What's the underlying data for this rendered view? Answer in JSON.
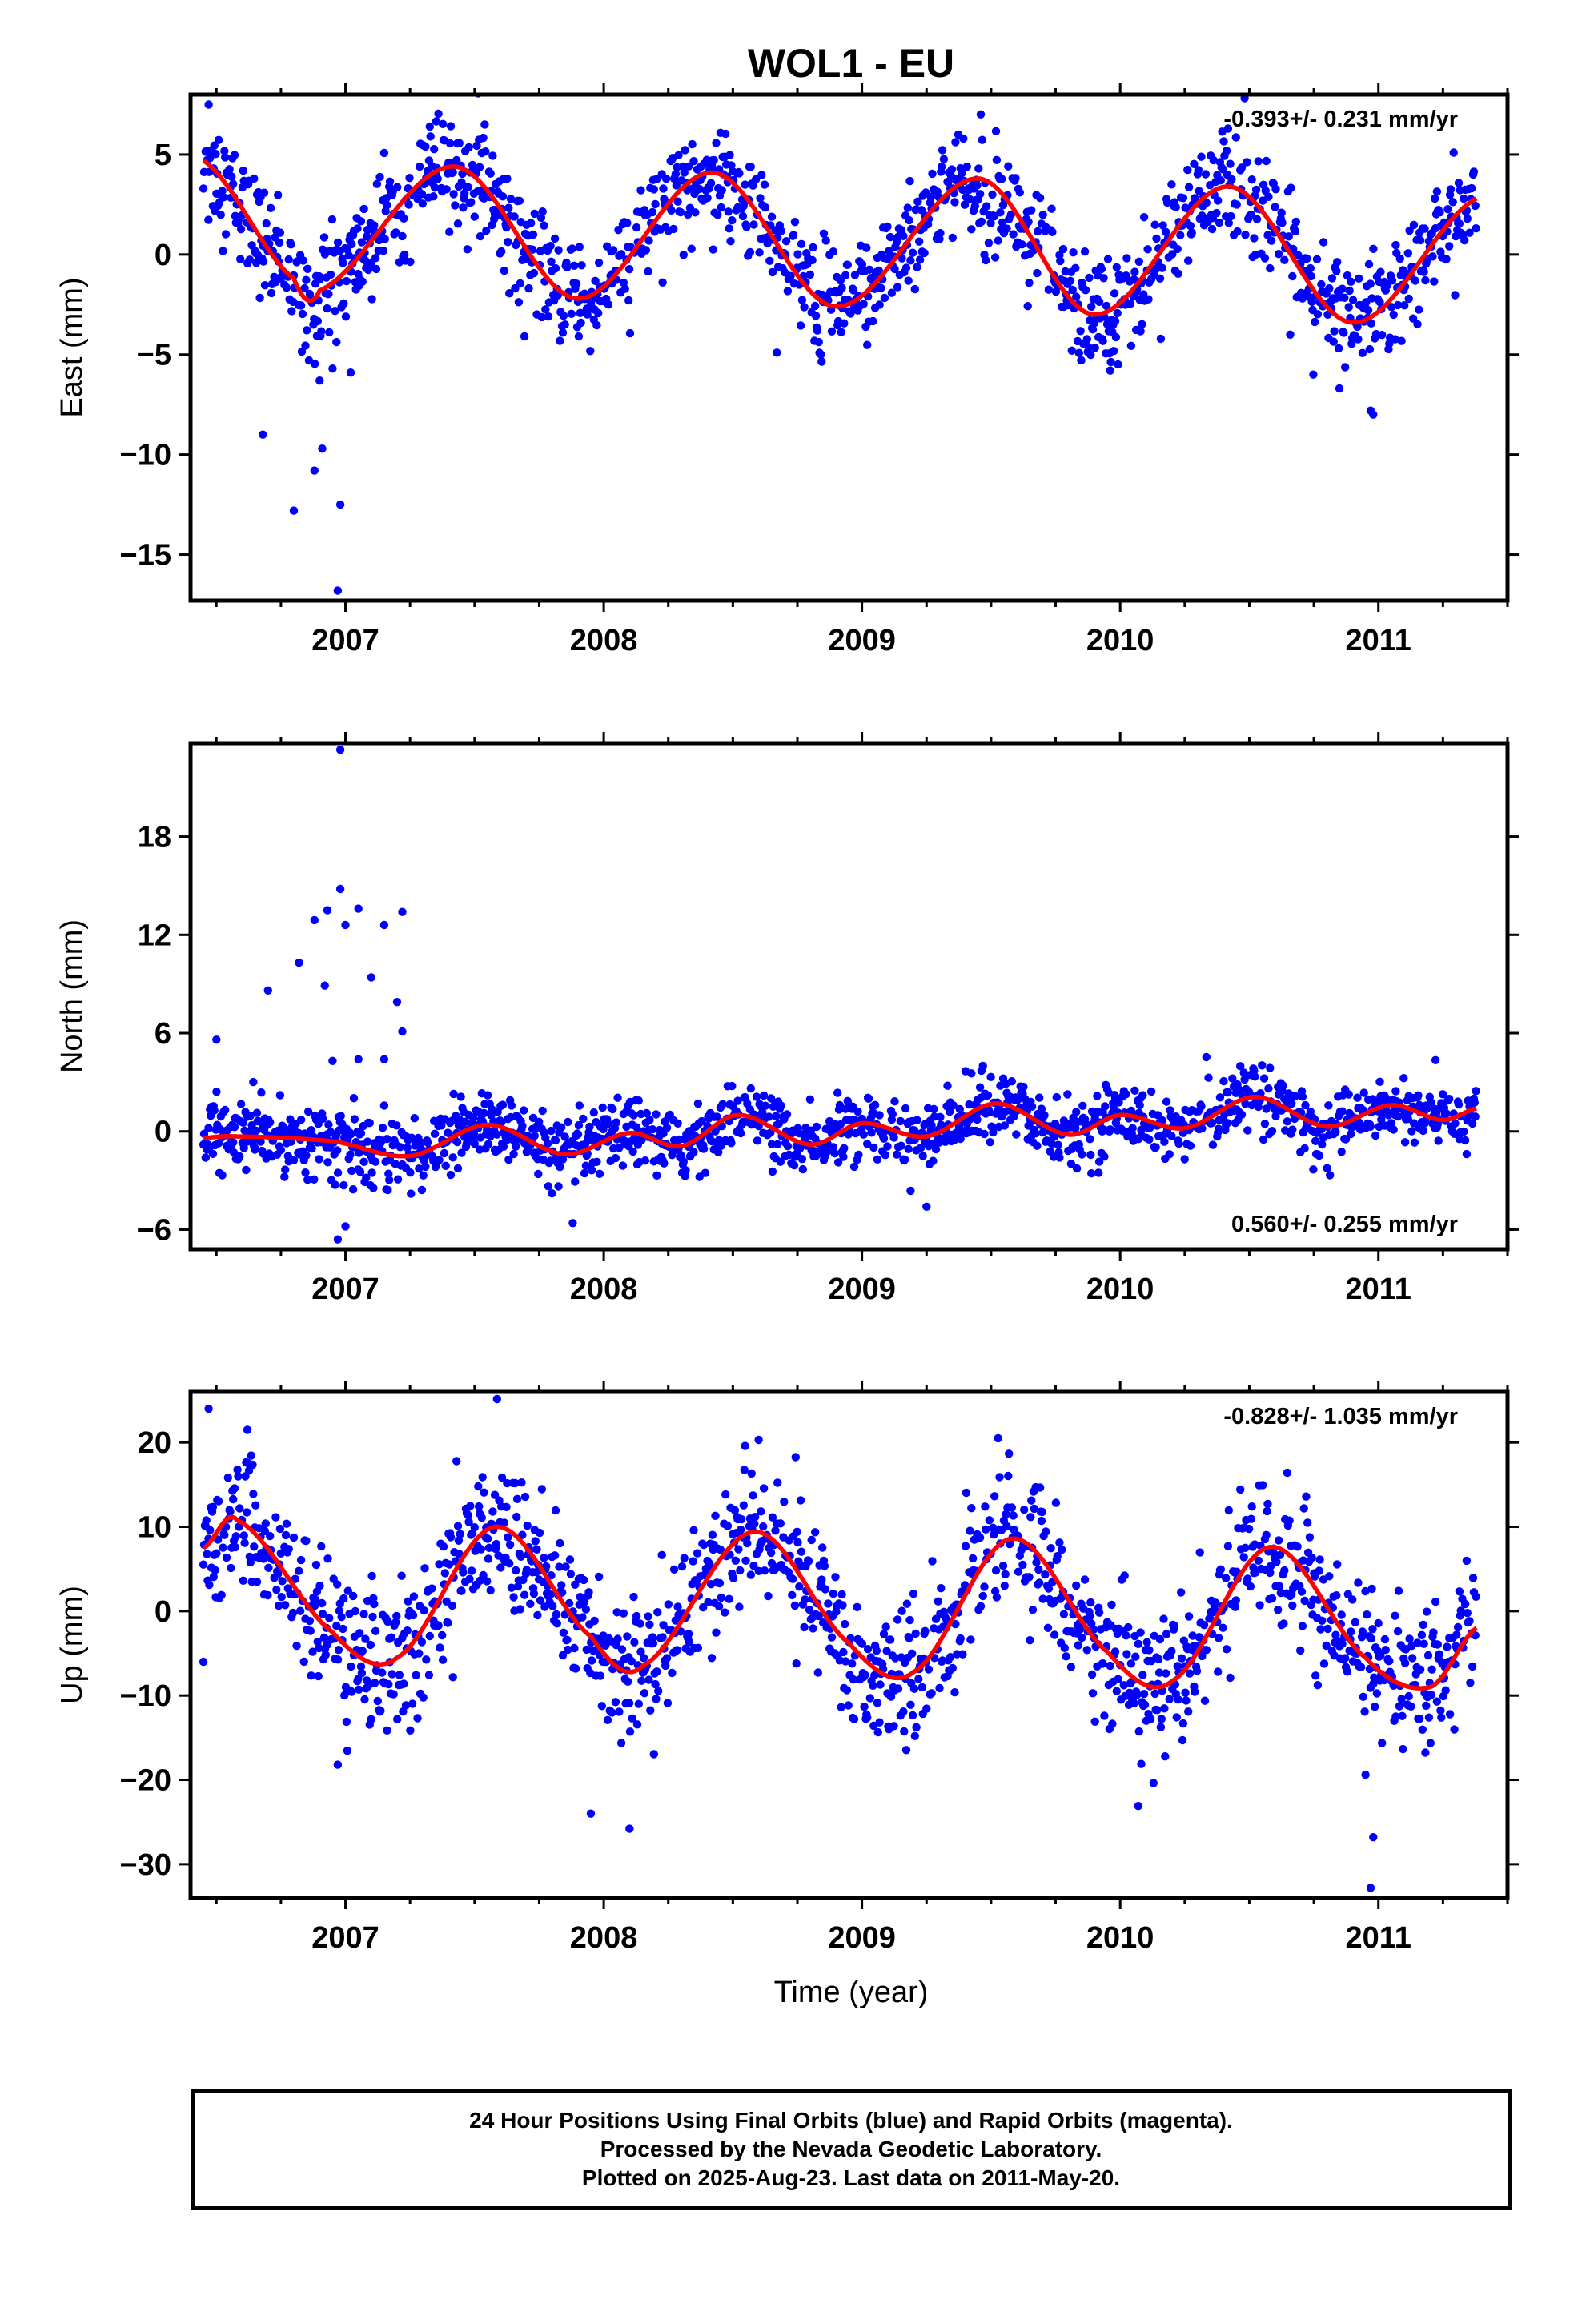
{
  "title": "WOL1 - EU",
  "xlabel": "Time (year)",
  "footer": {
    "line1": "24 Hour Positions Using Final Orbits (blue) and Rapid Orbits (magenta).",
    "line2": "Processed by the Nevada Geodetic Laboratory.",
    "line3": "Plotted on 2025-Aug-23. Last data on 2011-May-20."
  },
  "colors": {
    "points": "#0000ff",
    "fit": "#ff0000",
    "frame": "#000000"
  },
  "chart_data": [
    {
      "type": "scatter",
      "ylabel": "East (mm)",
      "rate_label": "-0.393+/- 0.231 mm/yr",
      "rate_position": "top-right",
      "xlim": [
        2006.4,
        2011.5
      ],
      "ylim": [
        -17.3,
        8.0
      ],
      "yticks": [
        5,
        0,
        -5,
        -10,
        -15
      ],
      "ytick_labels": [
        "5",
        "0",
        "−5",
        "−10",
        "−15"
      ],
      "xticks": [
        2007,
        2008,
        2009,
        2010,
        2011
      ],
      "xtick_labels": [
        "2007",
        "2008",
        "2009",
        "2010",
        "2011"
      ],
      "fit": {
        "t": [
          2006.45,
          2006.8,
          2006.9,
          2007.42,
          2007.9,
          2008.42,
          2008.9,
          2009.45,
          2009.9,
          2010.42,
          2010.9,
          2011.38
        ],
        "y": [
          4.7,
          -1.2,
          -1.8,
          4.4,
          -2.2,
          4.1,
          -2.6,
          3.8,
          -3.0,
          3.4,
          -3.4,
          2.8
        ]
      },
      "scatter_params": {
        "start": 2006.45,
        "end": 2011.38,
        "step": 0.0028,
        "noise": 1.35
      },
      "outliers": [
        [
          2006.68,
          -9.0
        ],
        [
          2006.8,
          -12.8
        ],
        [
          2006.88,
          -10.8
        ],
        [
          2006.91,
          -9.7
        ],
        [
          2006.98,
          -12.5
        ],
        [
          2006.97,
          -16.8
        ],
        [
          2006.9,
          -6.3
        ],
        [
          2006.95,
          -5.7
        ],
        [
          2007.02,
          -5.9
        ],
        [
          2010.97,
          -7.8
        ],
        [
          2010.98,
          -8.0
        ],
        [
          2006.47,
          7.5
        ]
      ]
    },
    {
      "type": "scatter",
      "ylabel": "North (mm)",
      "rate_label": "0.560+/- 0.255 mm/yr",
      "rate_position": "bottom-right",
      "xlim": [
        2006.4,
        2011.5
      ],
      "ylim": [
        -7.2,
        23.7
      ],
      "yticks": [
        18,
        12,
        6,
        0,
        -6
      ],
      "ytick_labels": [
        "18",
        "12",
        "6",
        "0",
        "−6"
      ],
      "xticks": [
        2007,
        2008,
        2009,
        2010,
        2011
      ],
      "xtick_labels": [
        "2007",
        "2008",
        "2009",
        "2010",
        "2011"
      ],
      "fit": {
        "t": [
          2006.45,
          2006.55,
          2006.95,
          2007.25,
          2007.55,
          2007.85,
          2008.1,
          2008.3,
          2008.52,
          2008.8,
          2009.0,
          2009.25,
          2009.52,
          2009.8,
          2010.0,
          2010.25,
          2010.52,
          2010.8,
          2011.05,
          2011.25,
          2011.38
        ],
        "y": [
          -0.4,
          -0.3,
          -0.6,
          -1.5,
          0.4,
          -1.4,
          -0.1,
          -0.9,
          1.0,
          -0.8,
          0.5,
          -0.3,
          1.7,
          -0.2,
          1.0,
          0.2,
          2.1,
          0.3,
          1.6,
          0.7,
          1.4
        ]
      },
      "scatter_params": {
        "start": 2006.45,
        "end": 2011.38,
        "step": 0.0028,
        "noise": 1.0
      },
      "outliers": [
        [
          2006.98,
          23.3
        ],
        [
          2006.98,
          14.8
        ],
        [
          2006.93,
          13.5
        ],
        [
          2007.05,
          13.6
        ],
        [
          2007.22,
          13.4
        ],
        [
          2007.15,
          12.6
        ],
        [
          2006.88,
          12.9
        ],
        [
          2006.7,
          8.6
        ],
        [
          2006.82,
          10.3
        ],
        [
          2006.92,
          8.9
        ],
        [
          2007.0,
          12.6
        ],
        [
          2007.1,
          9.4
        ],
        [
          2007.2,
          7.9
        ],
        [
          2006.5,
          5.6
        ],
        [
          2007.22,
          6.1
        ],
        [
          2006.95,
          4.3
        ],
        [
          2007.05,
          4.4
        ],
        [
          2007.15,
          4.4
        ],
        [
          2006.97,
          -6.6
        ],
        [
          2009.25,
          -4.6
        ],
        [
          2007.88,
          -5.6
        ],
        [
          2007.0,
          -5.8
        ]
      ]
    },
    {
      "type": "scatter",
      "ylabel": "Up (mm)",
      "rate_label": "-0.828+/- 1.035 mm/yr",
      "rate_position": "top-right",
      "xlim": [
        2006.4,
        2011.5
      ],
      "ylim": [
        -34.0,
        26.0
      ],
      "yticks": [
        20,
        10,
        0,
        -10,
        -20,
        -30
      ],
      "ytick_labels": [
        "20",
        "10",
        "0",
        "−10",
        "−20",
        "−30"
      ],
      "xticks": [
        2007,
        2008,
        2009,
        2010,
        2011
      ],
      "xtick_labels": [
        "2007",
        "2008",
        "2009",
        "2010",
        "2011"
      ],
      "fit": {
        "t": [
          2006.45,
          2006.58,
          2006.95,
          2007.2,
          2007.58,
          2007.95,
          2008.15,
          2008.58,
          2008.95,
          2009.2,
          2009.58,
          2009.95,
          2010.2,
          2010.58,
          2010.95,
          2011.2,
          2011.38
        ],
        "y": [
          7.5,
          10.8,
          -2.5,
          -5.5,
          10.0,
          -3.0,
          -6.5,
          9.4,
          -3.8,
          -7.2,
          8.6,
          -4.8,
          -8.3,
          7.6,
          -5.5,
          -9.0,
          -2.0
        ]
      },
      "scatter_params": {
        "start": 2006.45,
        "end": 2011.38,
        "step": 0.0028,
        "noise": 4.0
      },
      "outliers": [
        [
          2006.47,
          24.0
        ],
        [
          2006.45,
          -6.0
        ],
        [
          2006.97,
          -18.2
        ],
        [
          2007.95,
          -24.0
        ],
        [
          2008.1,
          -25.8
        ],
        [
          2010.07,
          -23.1
        ],
        [
          2010.98,
          -26.8
        ],
        [
          2010.97,
          -32.8
        ],
        [
          2010.95,
          -19.4
        ],
        [
          2006.62,
          21.5
        ],
        [
          2008.6,
          20.3
        ]
      ]
    }
  ]
}
